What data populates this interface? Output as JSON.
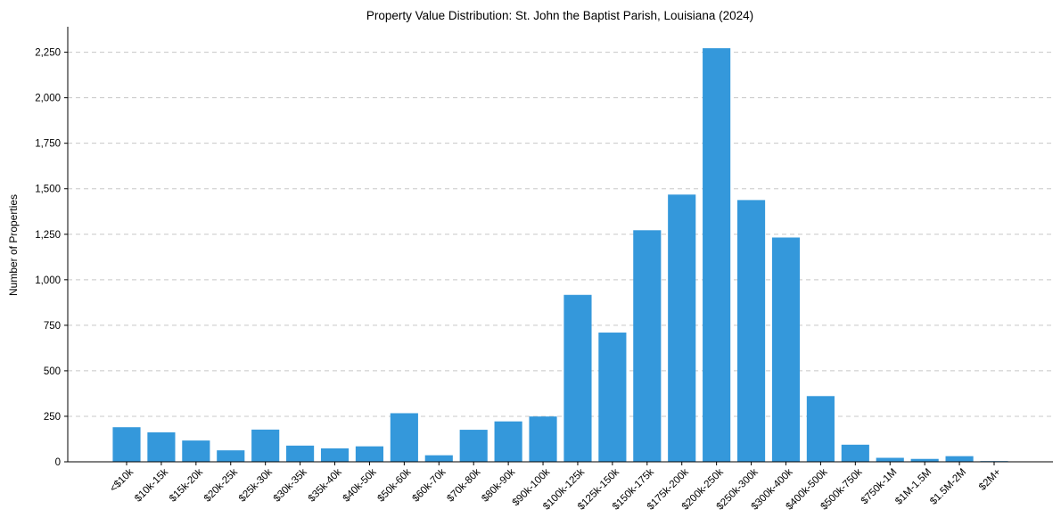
{
  "chart_data": {
    "type": "bar",
    "title": "Property Value Distribution: St. John the Baptist Parish, Louisiana (2024)",
    "xlabel": "",
    "ylabel": "Number of Properties",
    "ylim": [
      0,
      2390
    ],
    "yticks": [
      0,
      250,
      500,
      750,
      1000,
      1250,
      1500,
      1750,
      2000,
      2250
    ],
    "ytick_labels": [
      "0",
      "250",
      "500",
      "750",
      "1,000",
      "1,250",
      "1,500",
      "1,750",
      "2,000",
      "2,250"
    ],
    "grid": true,
    "bar_color": "#3498db",
    "categories": [
      "<$10k",
      "$10k-15k",
      "$15k-20k",
      "$20k-25k",
      "$25k-30k",
      "$30k-35k",
      "$35k-40k",
      "$40k-50k",
      "$50k-60k",
      "$60k-70k",
      "$70k-80k",
      "$80k-90k",
      "$90k-100k",
      "$100k-125k",
      "$125k-150k",
      "$150k-175k",
      "$175k-200k",
      "$200k-250k",
      "$250k-300k",
      "$300k-400k",
      "$400k-500k",
      "$500k-750k",
      "$750k-1M",
      "$1M-1.5M",
      "$1.5M-2M",
      "$2M+"
    ],
    "values": [
      190,
      162,
      117,
      63,
      177,
      89,
      74,
      85,
      267,
      36,
      176,
      222,
      249,
      917,
      710,
      1272,
      1468,
      2272,
      1438,
      1232,
      361,
      94,
      22,
      16,
      31,
      4
    ]
  }
}
